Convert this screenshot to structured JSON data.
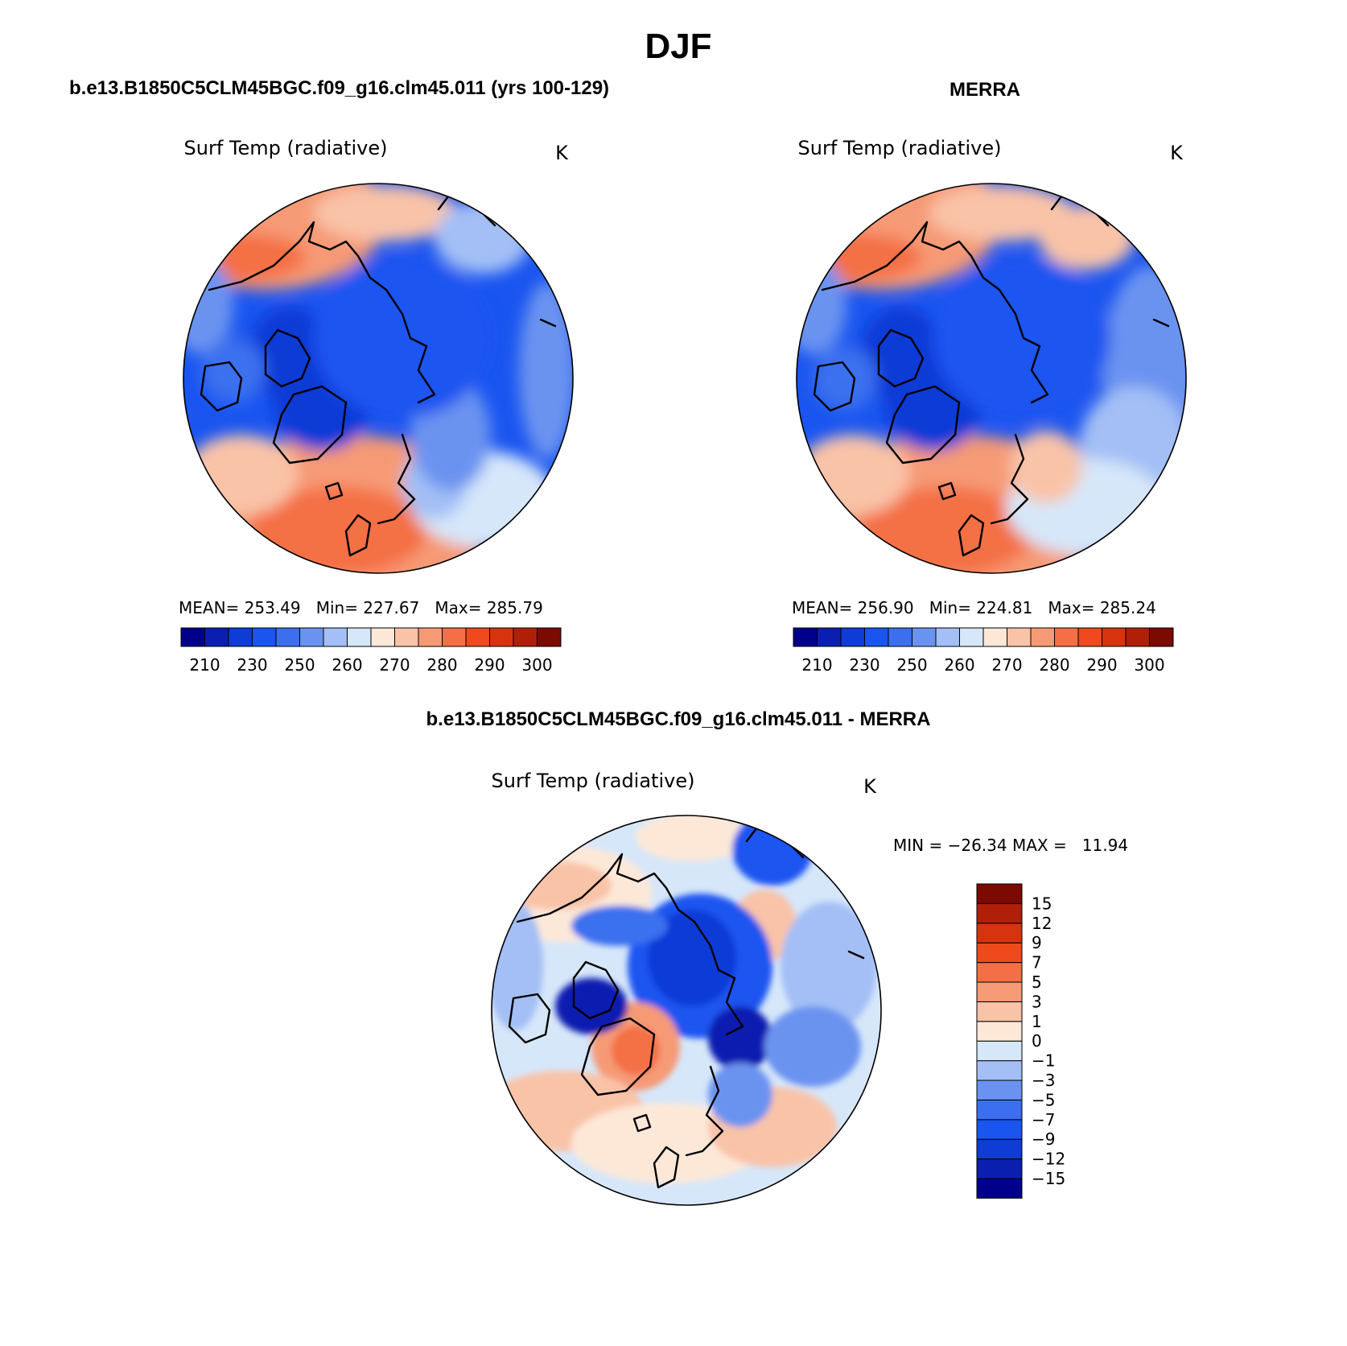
{
  "page_title": "DJF",
  "panels": [
    {
      "id": "model",
      "header": "b.e13.B1850C5CLM45BGC.f09_g16.clm45.011 (yrs 100-129)",
      "variable": "Surf Temp (radiative)",
      "units": "K",
      "stats": "MEAN= 253.49   Min= 227.67   Max= 285.79"
    },
    {
      "id": "obs",
      "header": "MERRA",
      "variable": "Surf Temp (radiative)",
      "units": "K",
      "stats": "MEAN= 256.90   Min= 224.81   Max= 285.24"
    },
    {
      "id": "diff",
      "header": "b.e13.B1850C5CLM45BGC.f09_g16.clm45.011 - MERRA",
      "variable": "Surf Temp (radiative)",
      "units": "K",
      "stats": "MIN = −26.34 MAX =   11.94"
    }
  ],
  "abs_colorbar": {
    "colors": [
      "#00008b",
      "#0a1fb0",
      "#0f3bd6",
      "#1a55f0",
      "#3b6fee",
      "#6a93f0",
      "#a3bff5",
      "#d6e7fa",
      "#fde8d8",
      "#f9c3a8",
      "#f69a76",
      "#f46f45",
      "#ef4a1d",
      "#d6340f",
      "#b02008",
      "#7b0a03"
    ],
    "tick_labels": [
      "210",
      "230",
      "250",
      "260",
      "270",
      "280",
      "290",
      "300"
    ]
  },
  "diff_colorbar": {
    "colors": [
      "#00008b",
      "#0a1fb0",
      "#0f3bd6",
      "#1a55f0",
      "#3b6fee",
      "#6a93f0",
      "#a3bff5",
      "#d6e7fa",
      "#fde8d8",
      "#f9c3a8",
      "#f69a76",
      "#f46f45",
      "#ef4a1d",
      "#d6340f",
      "#b02008",
      "#7b0a03"
    ],
    "tick_labels": [
      "15",
      "12",
      "9",
      "7",
      "5",
      "3",
      "1",
      "0",
      "−1",
      "−3",
      "−5",
      "−7",
      "−9",
      "−12",
      "−15"
    ]
  }
}
